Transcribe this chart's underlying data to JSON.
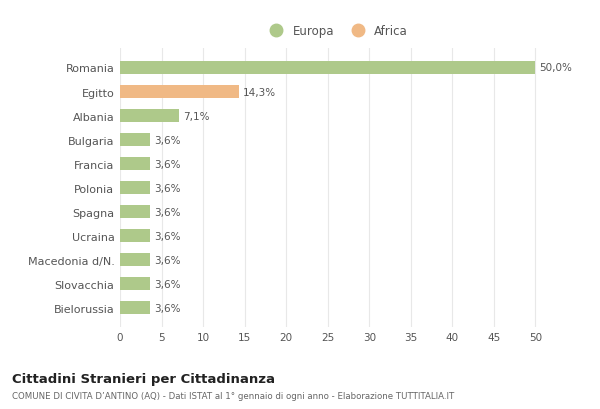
{
  "categories": [
    "Romania",
    "Egitto",
    "Albania",
    "Bulgaria",
    "Francia",
    "Polonia",
    "Spagna",
    "Ucraina",
    "Macedonia d/N.",
    "Slovacchia",
    "Bielorussia"
  ],
  "values": [
    50.0,
    14.3,
    7.1,
    3.6,
    3.6,
    3.6,
    3.6,
    3.6,
    3.6,
    3.6,
    3.6
  ],
  "labels": [
    "50,0%",
    "14,3%",
    "7,1%",
    "3,6%",
    "3,6%",
    "3,6%",
    "3,6%",
    "3,6%",
    "3,6%",
    "3,6%",
    "3,6%"
  ],
  "continents": [
    "Europa",
    "Africa",
    "Europa",
    "Europa",
    "Europa",
    "Europa",
    "Europa",
    "Europa",
    "Europa",
    "Europa",
    "Europa"
  ],
  "color_europa": "#aec98a",
  "color_africa": "#f0b985",
  "background_color": "#ffffff",
  "grid_color": "#e8e8e8",
  "xlim": [
    0,
    52
  ],
  "xticks": [
    0,
    5,
    10,
    15,
    20,
    25,
    30,
    35,
    40,
    45,
    50
  ],
  "title": "Cittadini Stranieri per Cittadinanza",
  "subtitle": "COMUNE DI CIVITA D’ANTINO (AQ) - Dati ISTAT al 1° gennaio di ogni anno - Elaborazione TUTTITALIA.IT",
  "legend_europa": "Europa",
  "legend_africa": "Africa",
  "bar_height": 0.55
}
